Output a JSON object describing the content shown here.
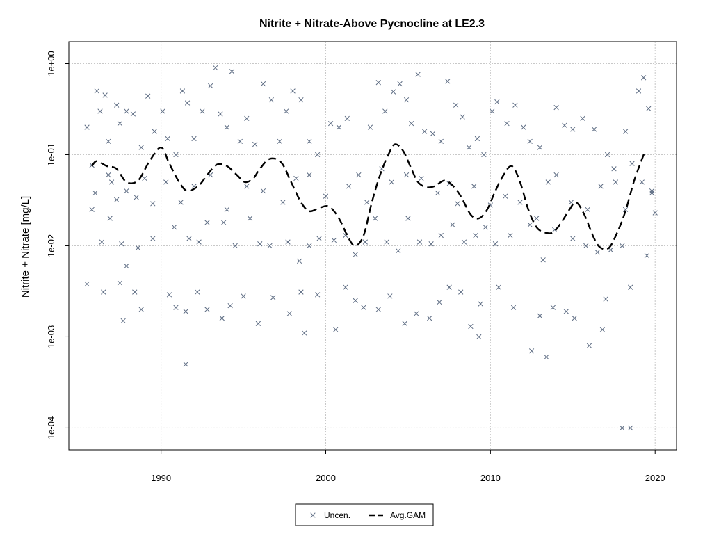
{
  "chart_data": {
    "type": "scatter",
    "title": "Nitrite + Nitrate-Above Pycnocline at LE2.3",
    "xlabel": "",
    "ylabel": "Nitrite + Nitrate [mg/L]",
    "y_scale": "log",
    "xlim": [
      1984.4,
      2021.3
    ],
    "ylim": [
      5.74e-05,
      1.74
    ],
    "x_ticks": [
      1990,
      2000,
      2010,
      2020
    ],
    "x_tick_labels": [
      "1990",
      "2000",
      "2010",
      "2020"
    ],
    "y_ticks": [
      0.0001,
      0.001,
      0.01,
      0.1,
      1
    ],
    "y_tick_labels": [
      "1e-04",
      "1e-03",
      "1e-02",
      "1e-01",
      "1e+00"
    ],
    "grid": true,
    "legend_position": "bottom-center",
    "colors": {
      "uncen": "#5c6b82",
      "gam": "#000000",
      "grid": "#c8c8c8"
    },
    "series": [
      {
        "name": "Uncen.",
        "kind": "points",
        "marker": "x",
        "points": [
          [
            1985.8,
            0.0767
          ],
          [
            1985.5,
            0.2
          ],
          [
            1986.1,
            0.5
          ],
          [
            1986.3,
            0.3
          ],
          [
            1986.6,
            0.45
          ],
          [
            1986.8,
            0.14
          ],
          [
            1987.0,
            0.05
          ],
          [
            1987.3,
            0.35
          ],
          [
            1987.5,
            0.22
          ],
          [
            1987.9,
            0.3
          ],
          [
            1988.3,
            0.28
          ],
          [
            1988.8,
            0.12
          ],
          [
            1989.2,
            0.44
          ],
          [
            1989.6,
            0.18
          ],
          [
            1990.1,
            0.3
          ],
          [
            1990.4,
            0.15
          ],
          [
            1990.9,
            0.1
          ],
          [
            1991.3,
            0.5
          ],
          [
            1991.6,
            0.37
          ],
          [
            1992.0,
            0.15
          ],
          [
            1992.5,
            0.3
          ],
          [
            1993.0,
            0.57
          ],
          [
            1993.3,
            0.9
          ],
          [
            1993.6,
            0.28
          ],
          [
            1994.0,
            0.2
          ],
          [
            1994.3,
            0.82
          ],
          [
            1994.8,
            0.14
          ],
          [
            1995.2,
            0.25
          ],
          [
            1995.7,
            0.13
          ],
          [
            1996.2,
            0.6
          ],
          [
            1996.7,
            0.4
          ],
          [
            1997.2,
            0.14
          ],
          [
            1997.6,
            0.3
          ],
          [
            1998.0,
            0.5
          ],
          [
            1998.5,
            0.4
          ],
          [
            1999.0,
            0.14
          ],
          [
            1999.5,
            0.1
          ],
          [
            2000.3,
            0.22
          ],
          [
            2000.8,
            0.2
          ],
          [
            2001.3,
            0.25
          ],
          [
            2002.0,
            0.06
          ],
          [
            2002.7,
            0.2
          ],
          [
            2003.2,
            0.62
          ],
          [
            2003.6,
            0.3
          ],
          [
            2004.1,
            0.49
          ],
          [
            2004.5,
            0.6
          ],
          [
            2004.9,
            0.4
          ],
          [
            2005.2,
            0.22
          ],
          [
            2005.6,
            0.76
          ],
          [
            2006.0,
            0.18
          ],
          [
            2006.5,
            0.17
          ],
          [
            2007.0,
            0.14
          ],
          [
            2007.4,
            0.64
          ],
          [
            2007.9,
            0.35
          ],
          [
            2008.3,
            0.26
          ],
          [
            2008.7,
            0.12
          ],
          [
            2009.2,
            0.15
          ],
          [
            2009.6,
            0.1
          ],
          [
            2010.1,
            0.3
          ],
          [
            2010.4,
            0.38
          ],
          [
            2011.0,
            0.22
          ],
          [
            2011.5,
            0.35
          ],
          [
            2012.0,
            0.2
          ],
          [
            2012.4,
            0.14
          ],
          [
            2013.0,
            0.12
          ],
          [
            2013.5,
            0.05
          ],
          [
            2014.0,
            0.33
          ],
          [
            2014.5,
            0.21
          ],
          [
            2015.0,
            0.19
          ],
          [
            2015.6,
            0.25
          ],
          [
            2016.3,
            0.19
          ],
          [
            2017.1,
            0.1
          ],
          [
            2017.6,
            0.05
          ],
          [
            2018.2,
            0.18
          ],
          [
            2018.6,
            0.08
          ],
          [
            2019.0,
            0.5
          ],
          [
            2019.3,
            0.7
          ],
          [
            2019.6,
            0.32
          ],
          [
            2019.8,
            0.04
          ],
          [
            2020.0,
            0.023
          ],
          [
            1985.8,
            0.025
          ],
          [
            1986.4,
            0.011
          ],
          [
            1986.9,
            0.02
          ],
          [
            1987.6,
            0.0105
          ],
          [
            1987.9,
            0.006
          ],
          [
            1988.6,
            0.0095
          ],
          [
            1989.5,
            0.012
          ],
          [
            1990.8,
            0.016
          ],
          [
            1991.7,
            0.012
          ],
          [
            1992.3,
            0.011
          ],
          [
            1992.8,
            0.018
          ],
          [
            1993.8,
            0.018
          ],
          [
            1994.5,
            0.01
          ],
          [
            1995.4,
            0.02
          ],
          [
            1996.0,
            0.0105
          ],
          [
            1996.6,
            0.01
          ],
          [
            1997.7,
            0.011
          ],
          [
            1998.4,
            0.0068
          ],
          [
            1999.0,
            0.01
          ],
          [
            1999.6,
            0.012
          ],
          [
            2000.5,
            0.0115
          ],
          [
            2001.2,
            0.013
          ],
          [
            2001.8,
            0.008
          ],
          [
            2002.4,
            0.011
          ],
          [
            2003.0,
            0.02
          ],
          [
            2003.7,
            0.011
          ],
          [
            2004.4,
            0.0088
          ],
          [
            2005.0,
            0.02
          ],
          [
            2005.7,
            0.011
          ],
          [
            2006.4,
            0.0105
          ],
          [
            2007.0,
            0.013
          ],
          [
            2007.7,
            0.017
          ],
          [
            2008.4,
            0.011
          ],
          [
            2009.1,
            0.013
          ],
          [
            2009.7,
            0.016
          ],
          [
            2010.3,
            0.0105
          ],
          [
            2011.2,
            0.013
          ],
          [
            2012.4,
            0.017
          ],
          [
            2013.2,
            0.007
          ],
          [
            2013.9,
            0.015
          ],
          [
            2015.0,
            0.012
          ],
          [
            2015.8,
            0.01
          ],
          [
            2016.5,
            0.0085
          ],
          [
            2017.3,
            0.009
          ],
          [
            2018.0,
            0.01
          ],
          [
            2019.5,
            0.0078
          ],
          [
            1985.5,
            0.0038
          ],
          [
            1986.5,
            0.0031
          ],
          [
            1987.5,
            0.0039
          ],
          [
            1987.7,
            0.0015
          ],
          [
            1988.4,
            0.0031
          ],
          [
            1988.8,
            0.002
          ],
          [
            1990.5,
            0.0029
          ],
          [
            1990.9,
            0.0021
          ],
          [
            1991.5,
            0.0019
          ],
          [
            1992.2,
            0.0031
          ],
          [
            1992.8,
            0.002
          ],
          [
            1993.7,
            0.0016
          ],
          [
            1994.2,
            0.0022
          ],
          [
            1995.0,
            0.0028
          ],
          [
            1995.9,
            0.0014
          ],
          [
            1996.8,
            0.0027
          ],
          [
            1997.8,
            0.0018
          ],
          [
            1998.5,
            0.0031
          ],
          [
            1998.7,
            0.0011
          ],
          [
            1999.5,
            0.0029
          ],
          [
            2000.6,
            0.0012
          ],
          [
            2001.2,
            0.0035
          ],
          [
            2001.8,
            0.0025
          ],
          [
            2002.3,
            0.0021
          ],
          [
            2003.2,
            0.002
          ],
          [
            2003.9,
            0.0028
          ],
          [
            2004.8,
            0.0014
          ],
          [
            2005.5,
            0.0018
          ],
          [
            2006.3,
            0.0016
          ],
          [
            2006.9,
            0.0024
          ],
          [
            2007.5,
            0.0035
          ],
          [
            2008.2,
            0.0031
          ],
          [
            2008.8,
            0.0013
          ],
          [
            2009.3,
            0.001
          ],
          [
            2009.4,
            0.0023
          ],
          [
            2010.5,
            0.0035
          ],
          [
            2011.4,
            0.0021
          ],
          [
            2012.5,
            0.0007
          ],
          [
            2013.0,
            0.0017
          ],
          [
            2013.4,
            0.0006
          ],
          [
            2013.8,
            0.0021
          ],
          [
            2014.6,
            0.0019
          ],
          [
            2015.1,
            0.0016
          ],
          [
            2016.0,
            0.0008
          ],
          [
            2016.8,
            0.0012
          ],
          [
            2017.0,
            0.0026
          ],
          [
            2018.5,
            0.0035
          ],
          [
            1991.5,
            0.0005
          ],
          [
            2018.0,
            0.0001
          ],
          [
            2018.5,
            0.0001
          ],
          [
            1986.0,
            0.038
          ],
          [
            1986.8,
            0.06
          ],
          [
            1987.3,
            0.032
          ],
          [
            1987.9,
            0.04
          ],
          [
            1988.5,
            0.034
          ],
          [
            1989.0,
            0.055
          ],
          [
            1989.5,
            0.029
          ],
          [
            1990.3,
            0.05
          ],
          [
            1991.2,
            0.03
          ],
          [
            1992.0,
            0.045
          ],
          [
            1993.0,
            0.06
          ],
          [
            1994.0,
            0.025
          ],
          [
            1995.2,
            0.045
          ],
          [
            1996.2,
            0.04
          ],
          [
            1997.4,
            0.03
          ],
          [
            1998.2,
            0.055
          ],
          [
            1999.0,
            0.06
          ],
          [
            2000.0,
            0.035
          ],
          [
            2001.4,
            0.045
          ],
          [
            2002.5,
            0.03
          ],
          [
            2003.4,
            0.07
          ],
          [
            2004.0,
            0.05
          ],
          [
            2004.9,
            0.06
          ],
          [
            2005.8,
            0.055
          ],
          [
            2006.8,
            0.038
          ],
          [
            2007.5,
            0.048
          ],
          [
            2008.0,
            0.029
          ],
          [
            2009.0,
            0.045
          ],
          [
            2010.0,
            0.028
          ],
          [
            2010.9,
            0.035
          ],
          [
            2011.8,
            0.03
          ],
          [
            2012.8,
            0.02
          ],
          [
            2014.0,
            0.06
          ],
          [
            2014.9,
            0.03
          ],
          [
            2015.9,
            0.025
          ],
          [
            2016.7,
            0.045
          ],
          [
            2017.5,
            0.07
          ],
          [
            2018.2,
            0.025
          ],
          [
            2019.2,
            0.05
          ],
          [
            2019.8,
            0.038
          ]
        ]
      },
      {
        "name": "Avg.GAM",
        "kind": "line",
        "dash": true,
        "points": [
          [
            1985.8,
            0.075
          ],
          [
            1986.1,
            0.085
          ],
          [
            1986.7,
            0.075
          ],
          [
            1987.3,
            0.07
          ],
          [
            1987.9,
            0.05
          ],
          [
            1988.6,
            0.052
          ],
          [
            1989.3,
            0.085
          ],
          [
            1990.0,
            0.12
          ],
          [
            1990.5,
            0.08
          ],
          [
            1991.1,
            0.05
          ],
          [
            1991.6,
            0.04
          ],
          [
            1992.3,
            0.046
          ],
          [
            1992.8,
            0.06
          ],
          [
            1993.4,
            0.078
          ],
          [
            1994.0,
            0.075
          ],
          [
            1994.6,
            0.06
          ],
          [
            1995.1,
            0.05
          ],
          [
            1995.6,
            0.055
          ],
          [
            1996.0,
            0.07
          ],
          [
            1996.6,
            0.09
          ],
          [
            1997.3,
            0.082
          ],
          [
            1997.9,
            0.05
          ],
          [
            1998.5,
            0.03
          ],
          [
            1999.0,
            0.024
          ],
          [
            1999.6,
            0.026
          ],
          [
            2000.2,
            0.027
          ],
          [
            2000.8,
            0.02
          ],
          [
            2001.4,
            0.012
          ],
          [
            2001.8,
            0.01
          ],
          [
            2002.3,
            0.013
          ],
          [
            2002.8,
            0.03
          ],
          [
            2003.3,
            0.06
          ],
          [
            2003.8,
            0.1
          ],
          [
            2004.2,
            0.13
          ],
          [
            2004.7,
            0.11
          ],
          [
            2005.2,
            0.07
          ],
          [
            2005.6,
            0.05
          ],
          [
            2006.1,
            0.044
          ],
          [
            2006.6,
            0.045
          ],
          [
            2007.2,
            0.052
          ],
          [
            2007.7,
            0.046
          ],
          [
            2008.2,
            0.035
          ],
          [
            2008.8,
            0.022
          ],
          [
            2009.3,
            0.02
          ],
          [
            2009.8,
            0.025
          ],
          [
            2010.3,
            0.04
          ],
          [
            2010.8,
            0.06
          ],
          [
            2011.3,
            0.075
          ],
          [
            2011.8,
            0.05
          ],
          [
            2012.3,
            0.025
          ],
          [
            2012.8,
            0.016
          ],
          [
            2013.3,
            0.014
          ],
          [
            2013.8,
            0.014
          ],
          [
            2014.3,
            0.018
          ],
          [
            2014.8,
            0.025
          ],
          [
            2015.2,
            0.03
          ],
          [
            2015.7,
            0.022
          ],
          [
            2016.3,
            0.012
          ],
          [
            2016.7,
            0.0095
          ],
          [
            2017.2,
            0.0095
          ],
          [
            2017.7,
            0.014
          ],
          [
            2018.2,
            0.024
          ],
          [
            2018.7,
            0.05
          ],
          [
            2019.1,
            0.08
          ],
          [
            2019.4,
            0.11
          ]
        ]
      }
    ]
  }
}
